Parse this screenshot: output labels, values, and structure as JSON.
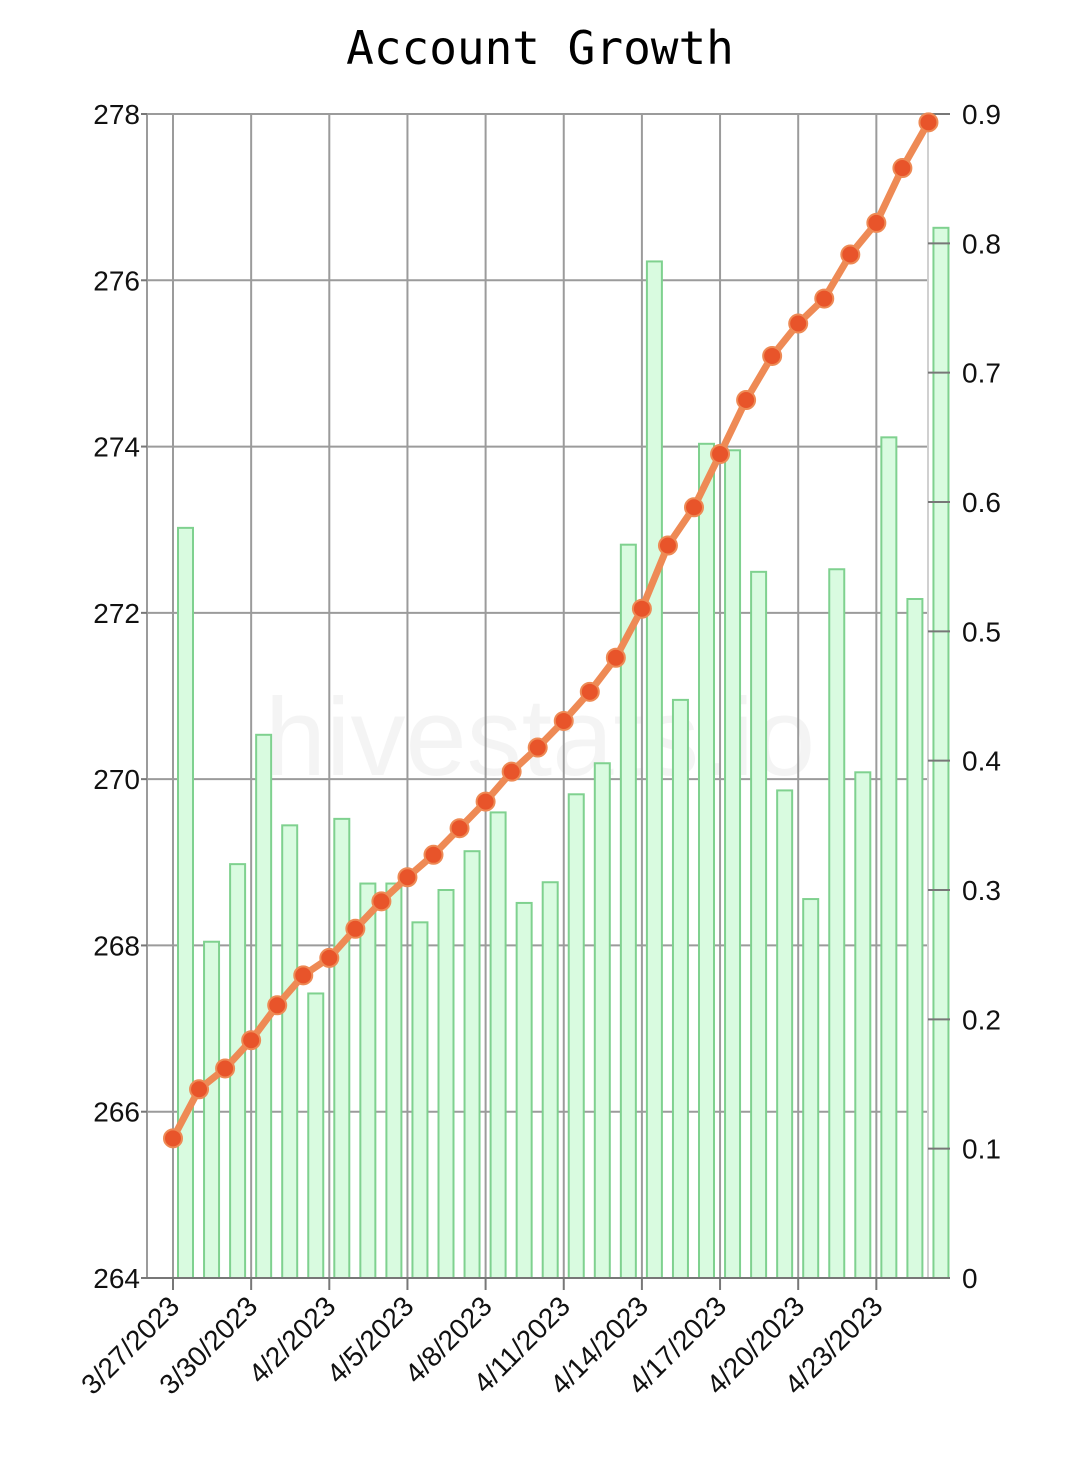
{
  "chart_data": {
    "type": "bar",
    "title": "Account Growth",
    "watermark": "hivestats.io",
    "x": [
      "3/27/2023",
      "3/28/2023",
      "3/29/2023",
      "3/30/2023",
      "3/31/2023",
      "4/1/2023",
      "4/2/2023",
      "4/3/2023",
      "4/4/2023",
      "4/5/2023",
      "4/6/2023",
      "4/7/2023",
      "4/8/2023",
      "4/9/2023",
      "4/10/2023",
      "4/11/2023",
      "4/12/2023",
      "4/13/2023",
      "4/14/2023",
      "4/15/2023",
      "4/16/2023",
      "4/17/2023",
      "4/18/2023",
      "4/19/2023",
      "4/20/2023",
      "4/21/2023",
      "4/22/2023",
      "4/23/2023",
      "4/24/2023",
      "4/25/2023"
    ],
    "x_tick_labels": [
      "3/27/2023",
      "3/30/2023",
      "4/2/2023",
      "4/5/2023",
      "4/8/2023",
      "4/11/2023",
      "4/14/2023",
      "4/17/2023",
      "4/20/2023",
      "4/23/2023"
    ],
    "series": [
      {
        "type": "bar",
        "axis": "right",
        "color": "#7fd18f",
        "values": [
          0.58,
          0.26,
          0.32,
          0.42,
          0.35,
          0.22,
          0.355,
          0.305,
          0.305,
          0.275,
          0.3,
          0.33,
          0.36,
          0.29,
          0.306,
          0.374,
          0.398,
          0.567,
          0.786,
          0.447,
          0.645,
          0.64,
          0.546,
          0.377,
          0.293,
          0.548,
          0.391,
          0.65,
          0.525,
          0.812
        ]
      },
      {
        "type": "line",
        "axis": "left",
        "color": "#ee8a55",
        "marker_color": "#e8542a",
        "values": [
          265.68,
          266.27,
          266.52,
          266.86,
          267.28,
          267.64,
          267.85,
          268.2,
          268.53,
          268.82,
          269.09,
          269.41,
          269.73,
          270.09,
          270.38,
          270.7,
          271.05,
          271.46,
          272.05,
          272.81,
          273.27,
          273.91,
          274.56,
          275.09,
          275.48,
          275.78,
          276.31,
          276.69,
          277.35,
          277.9
        ]
      }
    ],
    "y_left": {
      "ticks": [
        264,
        266,
        268,
        270,
        272,
        274,
        276,
        278
      ],
      "ylim": [
        264,
        278
      ]
    },
    "y_right": {
      "ticks": [
        0,
        0.1,
        0.2,
        0.3,
        0.4,
        0.5,
        0.6,
        0.7,
        0.8,
        0.9
      ],
      "tick_labels": [
        "0",
        "0.1",
        "0.2",
        "0.3",
        "0.4",
        "0.5",
        "0.6",
        "0.7",
        "0.8",
        "0.9"
      ],
      "ylim": [
        0,
        0.9
      ]
    },
    "grid": true,
    "legend": "none"
  }
}
